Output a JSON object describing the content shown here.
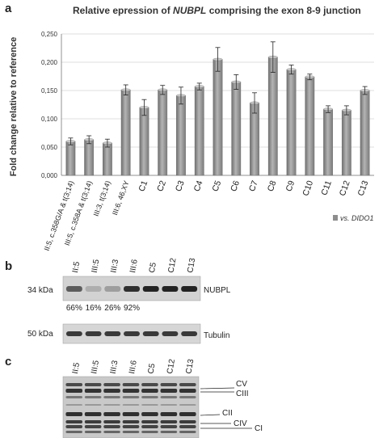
{
  "panels": {
    "a": "a",
    "b": "b",
    "c": "c"
  },
  "chart_data": {
    "type": "bar",
    "title_parts": [
      "Relative epression of ",
      "NUBPL",
      " comprising the exon 8-9  junction"
    ],
    "ylabel": "Fold change relative to reference",
    "xlabel": "",
    "ylim": [
      0,
      0.25
    ],
    "yticks": [
      "0,000",
      "0,050",
      "0,100",
      "0,150",
      "0,200",
      "0,250"
    ],
    "grid": true,
    "legend": {
      "label": "vs. DIDO1",
      "placement": "bottom-right"
    },
    "categories": [
      "II:5, c.358G/A & t(3;14)",
      "III:5, c.358A & t(3;14)",
      "III:3, t(3;14)",
      "III:6, 46,XY",
      "C1",
      "C2",
      "C3",
      "C4",
      "C5",
      "C6",
      "C7",
      "C8",
      "C9",
      "C10",
      "C11",
      "C12",
      "C13"
    ],
    "series": [
      {
        "name": "vs. DIDO1",
        "values": [
          0.06,
          0.063,
          0.057,
          0.151,
          0.12,
          0.151,
          0.141,
          0.157,
          0.205,
          0.165,
          0.128,
          0.209,
          0.187,
          0.174,
          0.117,
          0.115,
          0.15
        ],
        "errors": [
          0.006,
          0.007,
          0.007,
          0.009,
          0.014,
          0.008,
          0.015,
          0.006,
          0.021,
          0.013,
          0.018,
          0.027,
          0.008,
          0.005,
          0.006,
          0.008,
          0.007
        ]
      }
    ],
    "color": "#8e8e8e"
  },
  "blot_b": {
    "lanes": [
      "II:5",
      "III:5",
      "III:3",
      "III:6",
      "C5",
      "C12",
      "C13"
    ],
    "size_top": "34 kDa",
    "label_top": "NUBPL",
    "percentages": [
      "66%",
      "16%",
      "26%",
      "92%"
    ],
    "size_bottom": "50 kDa",
    "label_bottom": "Tubulin"
  },
  "blot_c": {
    "lanes": [
      "II:5",
      "III:5",
      "III:3",
      "III:6",
      "C5",
      "C12",
      "C13"
    ],
    "labels": [
      "CV",
      "CIII",
      "CII",
      "CIV",
      "CI"
    ]
  }
}
